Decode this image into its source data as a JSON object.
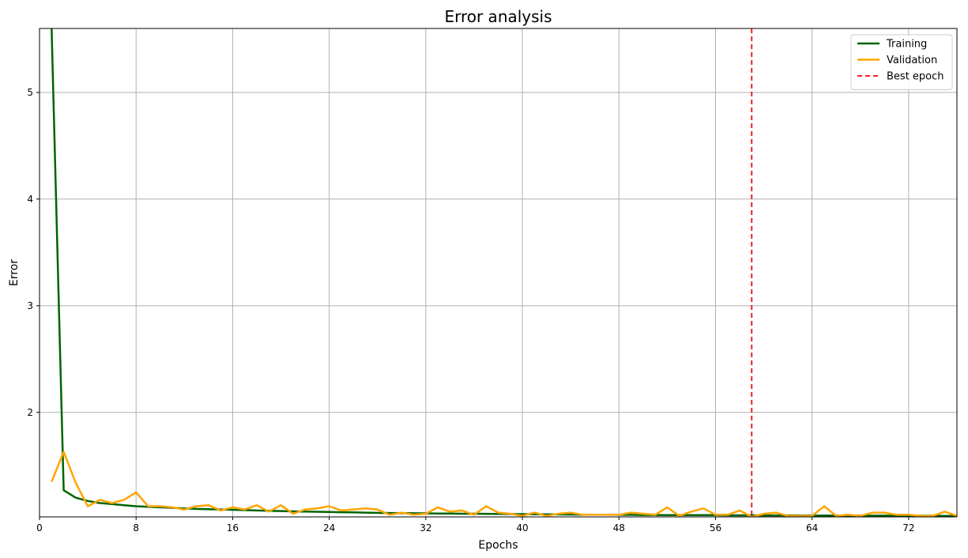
{
  "chart_data": {
    "type": "line",
    "title": "Error analysis",
    "xlabel": "Epochs",
    "ylabel": "Error",
    "xlim": [
      0,
      76
    ],
    "ylim": [
      1.02,
      5.6
    ],
    "x_ticks": [
      0,
      8,
      16,
      24,
      32,
      40,
      48,
      56,
      64,
      72
    ],
    "y_ticks": [
      2,
      3,
      4,
      5
    ],
    "grid": true,
    "legend_position": "top-right",
    "series": [
      {
        "name": "Training",
        "color": "#006400",
        "style": "solid",
        "x": [
          1,
          2,
          3,
          4,
          5,
          6,
          7,
          8,
          9,
          10,
          11,
          12,
          13,
          14,
          15,
          16,
          17,
          18,
          19,
          20,
          21,
          22,
          23,
          24,
          25,
          26,
          27,
          28,
          29,
          30,
          31,
          32,
          33,
          34,
          35,
          36,
          37,
          38,
          39,
          40,
          41,
          42,
          43,
          44,
          45,
          46,
          47,
          48,
          49,
          50,
          51,
          52,
          53,
          54,
          55,
          56,
          57,
          58,
          59,
          60,
          61,
          62,
          63,
          64,
          65,
          66,
          67,
          68,
          69,
          70,
          71,
          72,
          73,
          74,
          75,
          76
        ],
        "values": [
          5.6,
          1.27,
          1.2,
          1.17,
          1.15,
          1.14,
          1.13,
          1.12,
          1.115,
          1.11,
          1.105,
          1.1,
          1.095,
          1.092,
          1.09,
          1.087,
          1.084,
          1.08,
          1.077,
          1.075,
          1.072,
          1.07,
          1.068,
          1.066,
          1.064,
          1.062,
          1.06,
          1.058,
          1.056,
          1.055,
          1.054,
          1.053,
          1.052,
          1.051,
          1.05,
          1.05,
          1.049,
          1.048,
          1.047,
          1.046,
          1.045,
          1.044,
          1.043,
          1.042,
          1.041,
          1.04,
          1.04,
          1.039,
          1.039,
          1.038,
          1.038,
          1.037,
          1.037,
          1.036,
          1.036,
          1.036,
          1.035,
          1.035,
          1.035,
          1.034,
          1.034,
          1.034,
          1.033,
          1.033,
          1.033,
          1.033,
          1.032,
          1.032,
          1.032,
          1.032,
          1.031,
          1.031,
          1.031,
          1.031,
          1.03,
          1.03
        ]
      },
      {
        "name": "Validation",
        "color": "#ffa500",
        "style": "solid",
        "x": [
          1,
          2,
          3,
          4,
          5,
          6,
          7,
          8,
          9,
          10,
          11,
          12,
          13,
          14,
          15,
          16,
          17,
          18,
          19,
          20,
          21,
          22,
          23,
          24,
          25,
          26,
          27,
          28,
          29,
          30,
          31,
          32,
          33,
          34,
          35,
          36,
          37,
          38,
          39,
          40,
          41,
          42,
          43,
          44,
          45,
          46,
          47,
          48,
          49,
          50,
          51,
          52,
          53,
          54,
          55,
          56,
          57,
          58,
          59,
          60,
          61,
          62,
          63,
          64,
          65,
          66,
          67,
          68,
          69,
          70,
          71,
          72,
          73,
          74,
          75,
          76
        ],
        "values": [
          1.35,
          1.63,
          1.34,
          1.12,
          1.18,
          1.15,
          1.18,
          1.25,
          1.12,
          1.12,
          1.11,
          1.09,
          1.12,
          1.13,
          1.08,
          1.11,
          1.09,
          1.13,
          1.07,
          1.13,
          1.05,
          1.09,
          1.1,
          1.12,
          1.08,
          1.09,
          1.1,
          1.09,
          1.04,
          1.06,
          1.04,
          1.05,
          1.11,
          1.07,
          1.08,
          1.04,
          1.12,
          1.06,
          1.05,
          1.03,
          1.06,
          1.03,
          1.05,
          1.06,
          1.04,
          1.04,
          1.04,
          1.04,
          1.06,
          1.05,
          1.04,
          1.11,
          1.03,
          1.07,
          1.1,
          1.04,
          1.04,
          1.08,
          1.02,
          1.05,
          1.06,
          1.03,
          1.03,
          1.03,
          1.12,
          1.03,
          1.04,
          1.03,
          1.06,
          1.06,
          1.04,
          1.04,
          1.03,
          1.03,
          1.07,
          1.03
        ]
      }
    ],
    "vlines": [
      {
        "name": "Best epoch",
        "x": 59,
        "color": "#ff0000",
        "style": "dashed"
      }
    ]
  }
}
